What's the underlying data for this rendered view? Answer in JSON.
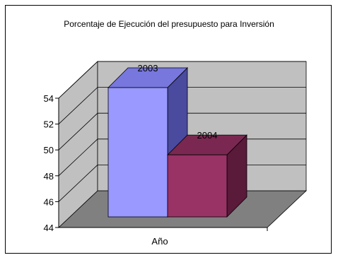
{
  "chart_data": {
    "type": "bar",
    "title": "Porcentaje de Ejecución del presupuesto para Inversión",
    "categories": [
      "Año"
    ],
    "series": [
      {
        "name": "2003",
        "values": [
          54
        ]
      },
      {
        "name": "2004",
        "values": [
          48.8
        ]
      }
    ],
    "data_labels": [
      "2003",
      "2004"
    ],
    "xlabel": "",
    "ylabel": "",
    "ylim": [
      44,
      54
    ],
    "yticks": [
      44,
      46,
      48,
      50,
      52,
      54
    ],
    "grid": true,
    "legend": "none",
    "style": "3d-clustered-column",
    "colors": {
      "series_2003_front": "#9999ff",
      "series_2003_top": "#7777dd",
      "series_2003_side": "#4a4a9e",
      "series_2004_front": "#993366",
      "series_2004_top": "#7a2851",
      "series_2004_side": "#5a1a3a",
      "back_wall": "#c0c0c0",
      "side_wall": "#c0c0c0",
      "floor": "#808080"
    }
  }
}
